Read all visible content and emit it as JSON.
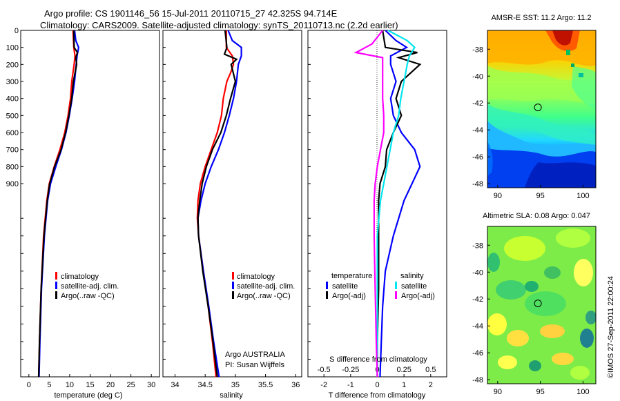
{
  "header": {
    "line1": "Argo profile: CS 1901146_56 15-Jul-2011 20110715_27 42.325S 94.714E",
    "line2": "Climatology: CARS2009. Satellite-adjusted climatology: synTS_20110713.nc (2.2d earlier)"
  },
  "side_stamp": "©IMOS 27-Sep-2011 22:00:24",
  "colors": {
    "climatology": "#ff0000",
    "satellite": "#0000ff",
    "argo": "#000000",
    "salinity_satellite": "#00e5ee",
    "salinity_argo": "#ff00ff"
  },
  "chart_data": [
    {
      "type": "line",
      "name": "temperature-profile",
      "xlabel": "temperature (deg C)",
      "xticks": [
        "0",
        "5",
        "10",
        "15",
        "20",
        "25",
        "30"
      ],
      "xlim": [
        -2,
        32
      ],
      "yticks": [
        "0",
        "100",
        "200",
        "300",
        "400",
        "500",
        "600",
        "700",
        "800",
        "900"
      ],
      "legend": [
        "climatology",
        "satellite-adj. clim.",
        "Argo(..raw -QC)"
      ],
      "series": [
        {
          "color": "#ff0000",
          "depth": [
            0,
            100,
            150,
            200,
            300,
            400,
            500,
            600,
            700,
            800,
            900,
            1000,
            1200,
            1500,
            1800,
            2000
          ],
          "values": [
            10.8,
            11.0,
            11.3,
            11.1,
            10.5,
            10.2,
            9.6,
            8.8,
            7.6,
            6.2,
            5.0,
            4.4,
            3.6,
            3.0,
            2.6,
            2.4
          ]
        },
        {
          "color": "#0000ff",
          "depth": [
            0,
            60,
            100,
            150,
            200,
            300,
            400,
            500,
            600,
            700,
            800,
            900,
            1000,
            1200,
            1500,
            1800,
            2000
          ],
          "values": [
            11.2,
            11.5,
            12.2,
            11.8,
            11.6,
            11.2,
            10.6,
            9.9,
            9.1,
            8.0,
            6.6,
            5.3,
            4.6,
            3.8,
            3.1,
            2.7,
            2.5
          ]
        },
        {
          "color": "#000000",
          "depth": [
            0,
            100,
            130,
            160,
            200,
            300,
            400,
            500,
            600,
            700,
            800,
            900,
            1000,
            1200,
            1500,
            1800,
            2000
          ],
          "values": [
            11.0,
            11.1,
            11.9,
            11.5,
            11.7,
            10.9,
            10.5,
            9.8,
            9.0,
            7.9,
            6.3,
            5.1,
            4.5,
            3.7,
            3.0,
            2.6,
            2.4
          ]
        }
      ]
    },
    {
      "type": "line",
      "name": "salinity-profile",
      "xlabel": "salinity",
      "xticks": [
        "34",
        "34.5",
        "35",
        "35.5",
        "36"
      ],
      "xlim": [
        33.8,
        36.1
      ],
      "legend": [
        "climatology",
        "satellite-adj. clim.",
        "Argo(..raw -QC)"
      ],
      "credit": [
        "Argo AUSTRALIA",
        "PI: Susan Wijffels"
      ],
      "series": [
        {
          "color": "#ff0000",
          "depth": [
            0,
            100,
            150,
            200,
            250,
            300,
            400,
            500,
            600,
            700,
            800,
            900,
            1000,
            1100,
            1200,
            1400,
            1600,
            1800,
            2000
          ],
          "values": [
            34.85,
            34.85,
            34.95,
            34.97,
            34.92,
            34.86,
            34.8,
            34.77,
            34.7,
            34.6,
            34.5,
            34.42,
            34.38,
            34.37,
            34.39,
            34.47,
            34.55,
            34.62,
            34.68
          ]
        },
        {
          "color": "#0000ff",
          "depth": [
            0,
            60,
            100,
            150,
            200,
            300,
            400,
            500,
            600,
            700,
            800,
            900,
            1000,
            1100,
            1200,
            1400,
            1600,
            1800,
            2000
          ],
          "values": [
            34.88,
            34.95,
            35.1,
            35.1,
            35.05,
            35.02,
            34.97,
            34.9,
            34.82,
            34.72,
            34.6,
            34.5,
            34.43,
            34.38,
            34.39,
            34.47,
            34.56,
            34.64,
            34.73
          ]
        },
        {
          "color": "#000000",
          "depth": [
            0,
            100,
            140,
            170,
            200,
            300,
            400,
            500,
            600,
            700,
            800,
            900,
            1000,
            1100,
            1200,
            1400,
            1600,
            1800,
            2000
          ],
          "values": [
            34.83,
            34.86,
            34.82,
            35.02,
            34.93,
            35.0,
            34.92,
            34.85,
            34.76,
            34.62,
            34.52,
            34.45,
            34.41,
            34.38,
            34.39,
            34.46,
            34.55,
            34.63,
            34.7
          ]
        }
      ]
    },
    {
      "type": "line",
      "name": "difference-profile",
      "xlabel": "T difference from climatology",
      "xlabel2": "S difference from climatology",
      "xticks": [
        "-2",
        "-1",
        "0",
        "1",
        "2"
      ],
      "xticks2": [
        "-0.5",
        "-0.25",
        "0",
        "0.25",
        "0.5"
      ],
      "xlim": [
        -2.6,
        2.6
      ],
      "legend_temperature_title": "temperature",
      "legend_salinity_title": "salinity",
      "legend_temperature": [
        "satellite",
        "Argo(-adj)"
      ],
      "legend_salinity": [
        "satellite",
        "Argo(-adj)"
      ],
      "series": [
        {
          "color": "#0000ff",
          "depth": [
            0,
            60,
            100,
            150,
            200,
            300,
            400,
            500,
            600,
            700,
            800,
            900,
            1000,
            1200,
            1400,
            1600,
            1800,
            2000
          ],
          "values": [
            0.3,
            0.7,
            1.1,
            0.5,
            0.5,
            0.7,
            0.5,
            0.6,
            0.9,
            1.4,
            1.6,
            1.3,
            1.0,
            0.6,
            0.3,
            0.2,
            0.15,
            0.1
          ]
        },
        {
          "color": "#000000",
          "depth": [
            0,
            100,
            130,
            160,
            200,
            300,
            400,
            500,
            600,
            700,
            800,
            900,
            1000,
            1200,
            1500,
            1800,
            2000
          ],
          "values": [
            0.2,
            0.3,
            1.5,
            0.8,
            1.6,
            0.9,
            0.7,
            0.9,
            0.6,
            0.35,
            0.3,
            0.1,
            0.05,
            0.05,
            0.05,
            0.0,
            0.0
          ]
        },
        {
          "color": "#00e5ee",
          "depth": [
            0,
            60,
            100,
            150,
            200,
            300,
            400,
            500,
            600,
            700,
            800,
            900,
            1000,
            1200,
            1500,
            1800,
            2000
          ],
          "values": [
            0.1,
            0.28,
            0.35,
            0.3,
            0.28,
            0.25,
            0.22,
            0.2,
            0.15,
            0.12,
            0.09,
            0.06,
            0.03,
            0.0,
            0.0,
            0.0,
            0.0
          ]
        },
        {
          "color": "#ff00ff",
          "depth": [
            0,
            80,
            130,
            160,
            200,
            300,
            400,
            500,
            600,
            700,
            800,
            900,
            1000,
            1200,
            1500,
            1800,
            2000
          ],
          "values": [
            0.05,
            -0.05,
            -0.2,
            0.05,
            0.05,
            0.05,
            0.05,
            0.06,
            0.06,
            0.03,
            0.0,
            -0.02,
            -0.03,
            -0.03,
            -0.02,
            -0.01,
            0.0
          ]
        }
      ]
    },
    {
      "type": "heatmap",
      "name": "amsre-sst-map",
      "title": "AMSR-E SST: 11.2 Argo: 11.2",
      "xticks": [
        "90",
        "95",
        "100"
      ],
      "yticks": [
        "-38",
        "-40",
        "-42",
        "-44",
        "-46",
        "-48"
      ],
      "marker_lon": 94.714,
      "marker_lat": -42.325
    },
    {
      "type": "heatmap",
      "name": "altimetric-sla-map",
      "title": "Altimetric SLA: 0.08 Argo: 0.047",
      "xticks": [
        "90",
        "95",
        "100"
      ],
      "yticks": [
        "-38",
        "-40",
        "-42",
        "-44",
        "-46",
        "-48"
      ],
      "marker_lon": 94.714,
      "marker_lat": -42.325
    }
  ]
}
